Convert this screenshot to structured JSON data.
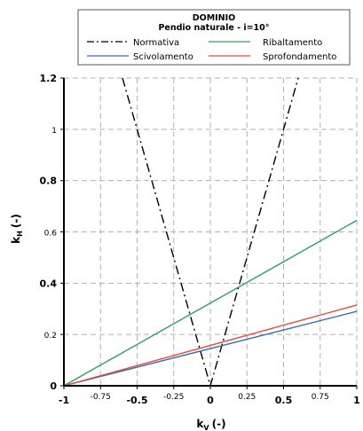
{
  "chart_data": {
    "type": "line",
    "legend": {
      "title_line1": "DOMINIO",
      "title_line2": "Pendio naturale - i=10°",
      "placement": "top"
    },
    "xlabel": "k",
    "xlabel_sub": "V",
    "xlabel_unit": "(-)",
    "ylabel": "k",
    "ylabel_sub": "H",
    "ylabel_unit": "(-)",
    "xlim": [
      -1,
      1
    ],
    "ylim": [
      0,
      1.2
    ],
    "grid": true,
    "x_ticks": [
      {
        "value": -1,
        "label": "-1",
        "major": true
      },
      {
        "value": -0.75,
        "label": "-0.75",
        "major": false
      },
      {
        "value": -0.5,
        "label": "-0.5",
        "major": true
      },
      {
        "value": -0.25,
        "label": "-0.25",
        "major": false
      },
      {
        "value": 0,
        "label": "0",
        "major": true
      },
      {
        "value": 0.25,
        "label": "0.25",
        "major": false
      },
      {
        "value": 0.5,
        "label": "0.5",
        "major": true
      },
      {
        "value": 0.75,
        "label": "0.75",
        "major": false
      },
      {
        "value": 1,
        "label": "1",
        "major": true
      }
    ],
    "y_ticks": [
      {
        "value": 0,
        "label": "0",
        "major": true
      },
      {
        "value": 0.2,
        "label": "0.2",
        "major": false
      },
      {
        "value": 0.4,
        "label": "0.4",
        "major": true
      },
      {
        "value": 0.6,
        "label": "0.6",
        "major": false
      },
      {
        "value": 0.8,
        "label": "0.8",
        "major": true
      },
      {
        "value": 1.0,
        "label": "1",
        "major": false
      },
      {
        "value": 1.2,
        "label": "1.2",
        "major": true
      }
    ],
    "series": [
      {
        "name": "Normativa",
        "color": "#000000",
        "dash": "dashdot",
        "x": [
          -0.6,
          0,
          0.6
        ],
        "y": [
          1.2,
          0,
          1.2
        ]
      },
      {
        "name": "Ribaltamento",
        "color": "#2ca25f",
        "dash": "solid",
        "x": [
          -1,
          1
        ],
        "y": [
          0,
          0.645
        ]
      },
      {
        "name": "Scivolamento",
        "color": "#3b6bb5",
        "dash": "solid",
        "x": [
          -1,
          1
        ],
        "y": [
          0,
          0.29
        ]
      },
      {
        "name": "Sprofondamento",
        "color": "#e8473a",
        "dash": "solid",
        "x": [
          -1,
          1
        ],
        "y": [
          0,
          0.315
        ]
      }
    ]
  }
}
